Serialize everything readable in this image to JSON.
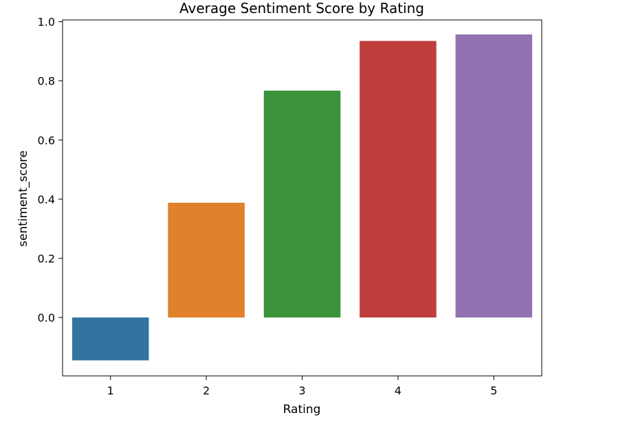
{
  "chart_data": {
    "type": "bar",
    "title": "Average Sentiment Score by Rating",
    "xlabel": "Rating",
    "ylabel": "sentiment_score",
    "categories": [
      "1",
      "2",
      "3",
      "4",
      "5"
    ],
    "values": [
      -0.145,
      0.388,
      0.767,
      0.935,
      0.957
    ],
    "colors": [
      "#3274a1",
      "#e1812c",
      "#3a923a",
      "#c03d3e",
      "#9372b2"
    ],
    "ylim": [
      -0.2,
      1.0
    ],
    "yticks": [
      {
        "value": 0.0,
        "label": "0.0"
      },
      {
        "value": 0.2,
        "label": "0.2"
      },
      {
        "value": 0.4,
        "label": "0.4"
      },
      {
        "value": 0.6,
        "label": "0.6"
      },
      {
        "value": 0.8,
        "label": "0.8"
      },
      {
        "value": 1.0,
        "label": "1.0"
      }
    ],
    "grid": false,
    "legend": "none"
  }
}
